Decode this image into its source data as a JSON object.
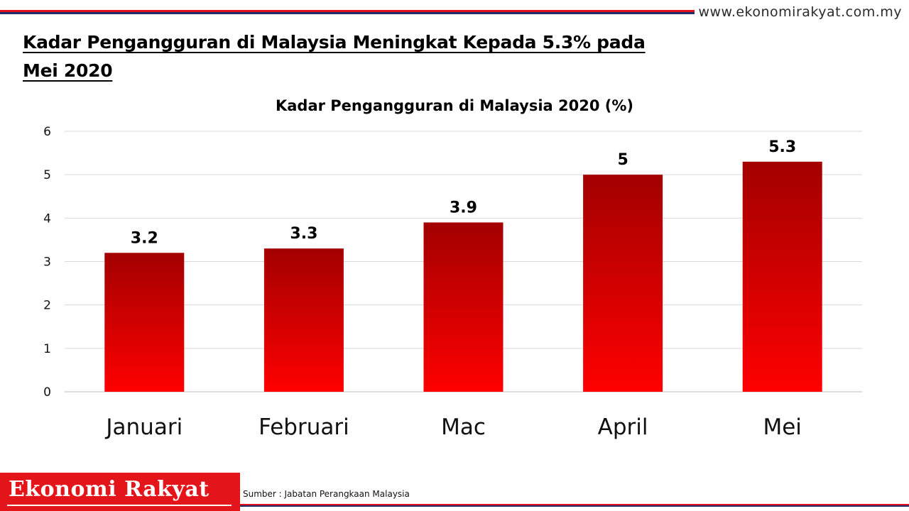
{
  "website": "www.ekonomirakyat.com.my",
  "headline": "Kadar Pengangguran di Malaysia Meningkat Kepada 5.3% pada Mei 2020",
  "footer": {
    "brand": "Ekonomi Rakyat",
    "source": "Sumber : Jabatan Perangkaan Malaysia"
  },
  "colors": {
    "bar_top": "#a30000",
    "bar_bottom": "#ff0000",
    "brand_red": "#e3151b",
    "stripe_blue": "#1f2d6b",
    "gridline": "#d9d9d9"
  },
  "chart_data": {
    "type": "bar",
    "title": "Kadar Pengangguran di Malaysia 2020 (%)",
    "categories": [
      "Januari",
      "Februari",
      "Mac",
      "April",
      "Mei"
    ],
    "values": [
      3.2,
      3.3,
      3.9,
      5,
      5.3
    ],
    "data_labels": [
      "3.2",
      "3.3",
      "3.9",
      "5",
      "5.3"
    ],
    "xlabel": "",
    "ylabel": "",
    "ylim": [
      0,
      6
    ],
    "yticks": [
      0,
      1,
      2,
      3,
      4,
      5,
      6
    ],
    "grid": true,
    "legend": "none"
  }
}
